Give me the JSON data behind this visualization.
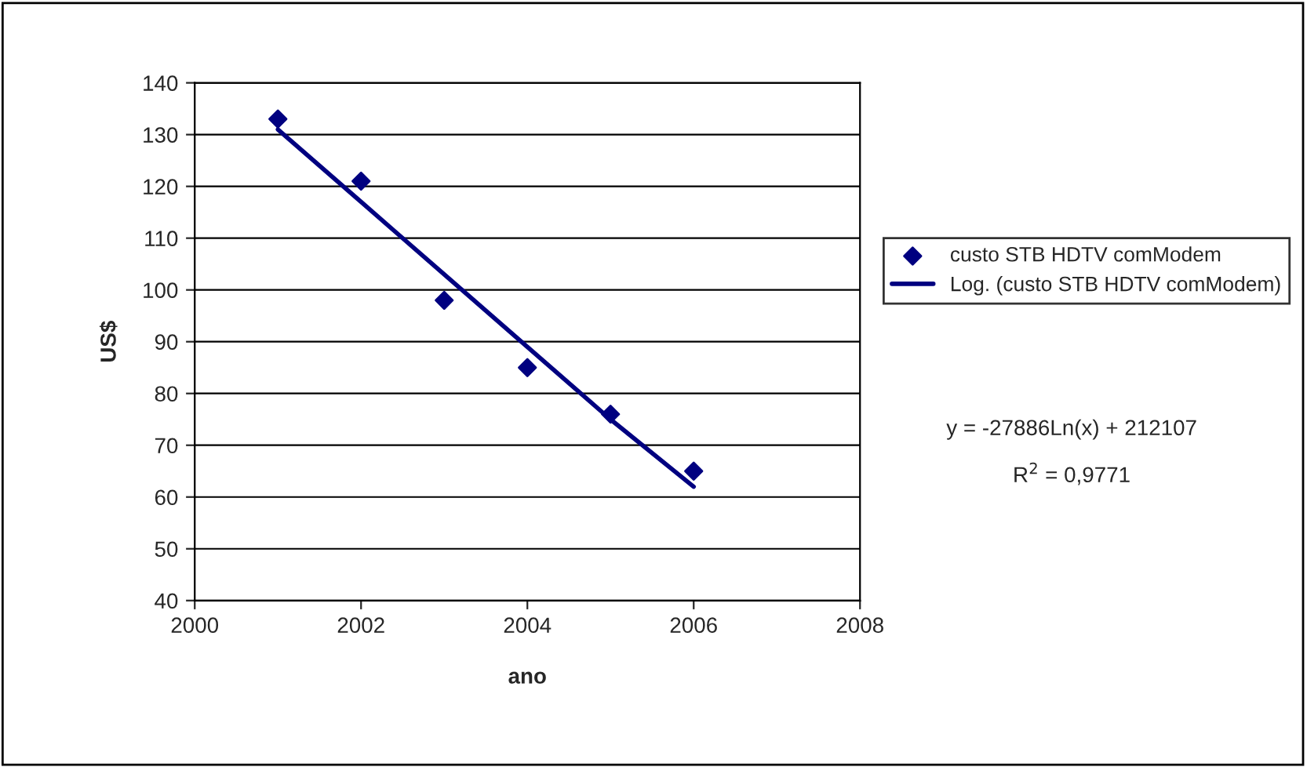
{
  "chart_data": {
    "type": "scatter",
    "xlabel": "ano",
    "ylabel": "US$",
    "series": [
      {
        "name": "custo STB HDTV comModem",
        "color": "#000080",
        "marker": "diamond",
        "x": [
          2001,
          2002,
          2003,
          2004,
          2005,
          2006
        ],
        "values": [
          133,
          121,
          98,
          85,
          76,
          65
        ]
      },
      {
        "name": "Log. (custo STB HDTV comModem)",
        "type": "line",
        "color": "#000080",
        "marker": "none",
        "line_style": "solid",
        "x": [
          2001,
          2002,
          2003,
          2004,
          2005,
          2006
        ],
        "values": [
          131,
          117,
          103,
          89,
          75,
          62
        ]
      }
    ],
    "xlim": [
      2000,
      2008
    ],
    "xticks": [
      2000,
      2002,
      2004,
      2006,
      2008
    ],
    "ylim": [
      40,
      140
    ],
    "yticks": [
      40,
      50,
      60,
      70,
      80,
      90,
      100,
      110,
      120,
      130,
      140
    ],
    "grid": "y",
    "legend": "right",
    "annotations": [
      "y = -27886Ln(x) + 212107",
      "R$^{2}$ = 0,9771"
    ]
  }
}
